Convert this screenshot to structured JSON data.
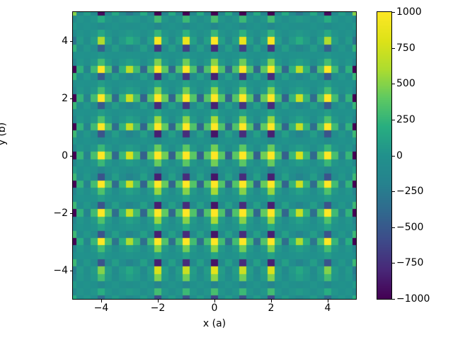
{
  "window": {
    "background": "#ffffff"
  },
  "chart_data": {
    "type": "heatmap",
    "title": "",
    "xlabel": "x (a)",
    "ylabel": "y (b)",
    "x_min": -5,
    "x_max": 5,
    "y_min": -5,
    "y_max": 5,
    "cell_step": 0.25,
    "grid_n": 41,
    "vmin": -1000,
    "vmax": 1000,
    "colormap": "viridis",
    "colormap_stops": [
      "#440154",
      "#482878",
      "#3e4a89",
      "#31688e",
      "#26828e",
      "#21918c",
      "#28ae80",
      "#5ec962",
      "#addc30",
      "#dde218",
      "#fde725"
    ],
    "background_value_color": "#21918c",
    "xtick_values": [
      -4,
      -2,
      0,
      2,
      4
    ],
    "xtick_labels": [
      "−4",
      "−2",
      "0",
      "2",
      "4"
    ],
    "ytick_values": [
      4,
      2,
      0,
      -2,
      -4
    ],
    "ytick_labels": [
      "4",
      "2",
      "0",
      "−2",
      "−4"
    ],
    "colorbar_tick_values": [
      1000,
      750,
      500,
      250,
      0,
      -250,
      -500,
      -750,
      -1000
    ],
    "colorbar_tick_labels": [
      "1000",
      "750",
      "500",
      "250",
      "0",
      "−250",
      "−500",
      "−750",
      "−1000"
    ],
    "values_model": "values[j][i] = clamp(profile_x[i] * profile_y[j], vmin, vmax); i,j index x,y = -5 + 0.25*k; peaks sit on the integer lattice with dark negative sidelobes beside them",
    "profile_x": [
      -20,
      4,
      -3,
      5,
      38,
      6,
      -6,
      4,
      12,
      5,
      -7,
      6,
      60,
      7,
      -7,
      6,
      55,
      6,
      -7,
      6,
      64,
      6,
      -7,
      6,
      55,
      6,
      -7,
      7,
      60,
      5,
      -7,
      4,
      12,
      4,
      -6,
      6,
      38,
      5,
      -3,
      4,
      -20
    ],
    "profile_y": [
      -10,
      5,
      -3,
      8,
      13,
      -14,
      2,
      8,
      50,
      -14,
      3,
      9,
      58,
      -14,
      2,
      9,
      60,
      -14,
      -4,
      7,
      64,
      7,
      -2,
      -14,
      58,
      9,
      2,
      -13,
      60,
      8,
      2,
      -13,
      56,
      8,
      1,
      -12,
      16,
      4,
      -2,
      5,
      -25
    ]
  }
}
